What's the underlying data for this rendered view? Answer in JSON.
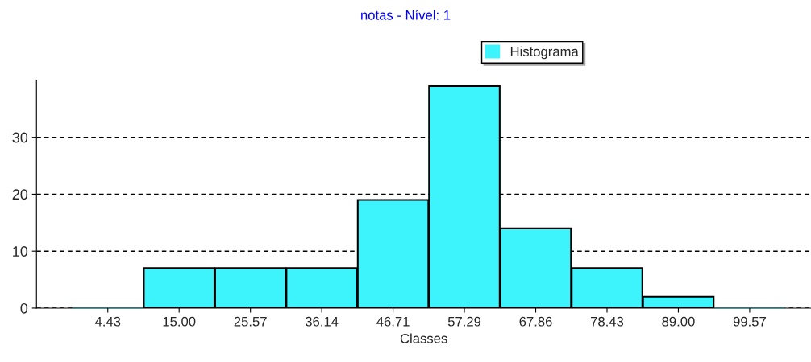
{
  "chart_data": {
    "type": "bar",
    "title": "notas - Nível: 1",
    "xlabel": "Classes",
    "categories": [
      "4.43",
      "15.00",
      "25.57",
      "36.14",
      "46.71",
      "57.29",
      "67.86",
      "78.43",
      "89.00",
      "99.57"
    ],
    "series": [
      {
        "name": "Histograma",
        "color": "#3ef4fc",
        "values": [
          0,
          7,
          7,
          7,
          19,
          39,
          14,
          7,
          2,
          0
        ]
      }
    ],
    "ylim": [
      0,
      40
    ],
    "yticks": [
      0,
      10,
      20,
      30
    ],
    "grid": "y",
    "legend": "top"
  }
}
